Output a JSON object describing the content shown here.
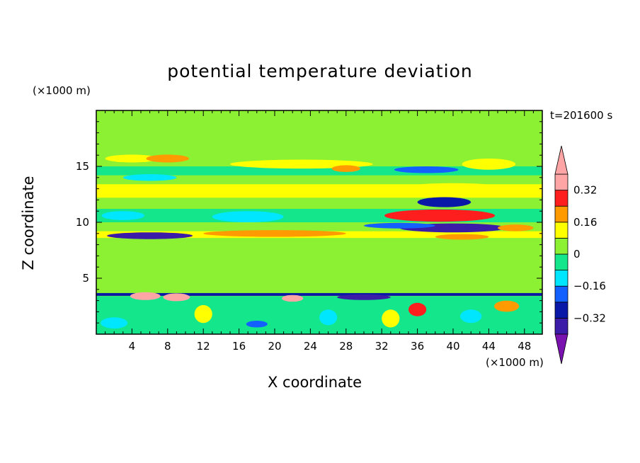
{
  "chart_data": {
    "type": "heatmap",
    "title": "potential temperature deviation",
    "xlabel": "X coordinate",
    "ylabel": "Z coordinate",
    "x_unit": "(×1000 m)",
    "y_unit": "(×1000 m)",
    "time_label": "t=201600 s",
    "xlim": [
      0,
      50
    ],
    "ylim": [
      0,
      20
    ],
    "x_ticks": [
      4,
      8,
      12,
      16,
      20,
      24,
      28,
      32,
      36,
      40,
      44,
      48
    ],
    "y_ticks": [
      5,
      10,
      15
    ],
    "colorbar": {
      "levels": [
        -0.4,
        -0.32,
        -0.24,
        -0.16,
        -0.08,
        0,
        0.08,
        0.16,
        0.24,
        0.32,
        0.4
      ],
      "labels": [
        "0.32",
        "0.16",
        "0",
        "−0.16",
        "−0.32"
      ],
      "label_values": [
        0.32,
        0.16,
        0,
        -0.16,
        -0.32
      ],
      "colors": [
        "#7a12b0",
        "#3b1ca8",
        "#0a18a8",
        "#1460ff",
        "#00e6ff",
        "#14e68c",
        "#8cf033",
        "#ffff00",
        "#ff9b00",
        "#ff1e1e",
        "#ffa5a5"
      ]
    },
    "bands": [
      {
        "z0": 0,
        "z1": 20,
        "v": 0.0
      },
      {
        "z0": 16.6,
        "z1": 17.6,
        "v": 0.04
      },
      {
        "z0": 14.2,
        "z1": 15.0,
        "v": -0.08
      },
      {
        "z0": 12.2,
        "z1": 13.4,
        "v": 0.1
      },
      {
        "z0": 11.2,
        "z1": 12.0,
        "v": 0.05
      },
      {
        "z0": 10.0,
        "z1": 11.2,
        "v": -0.08
      },
      {
        "z0": 9.2,
        "z1": 10.0,
        "v": 0.05
      },
      {
        "z0": 8.6,
        "z1": 9.2,
        "v": 0.12
      },
      {
        "z0": 3.8,
        "z1": 8.4,
        "v": 0.02
      },
      {
        "z0": 0,
        "z1": 3.4,
        "v": -0.02
      }
    ],
    "blobs": [
      {
        "x": 4,
        "z": 15.7,
        "rx": 3.0,
        "rz": 0.35,
        "v": 0.14
      },
      {
        "x": 8,
        "z": 15.7,
        "rx": 2.4,
        "rz": 0.35,
        "v": 0.22
      },
      {
        "x": 23,
        "z": 15.2,
        "rx": 8.0,
        "rz": 0.4,
        "v": 0.12
      },
      {
        "x": 28,
        "z": 14.8,
        "rx": 1.6,
        "rz": 0.3,
        "v": 0.22
      },
      {
        "x": 37,
        "z": 14.7,
        "rx": 3.6,
        "rz": 0.3,
        "v": -0.18
      },
      {
        "x": 44,
        "z": 15.2,
        "rx": 3.0,
        "rz": 0.5,
        "v": 0.12
      },
      {
        "x": 6,
        "z": 14.0,
        "rx": 3.0,
        "rz": 0.3,
        "v": -0.1
      },
      {
        "x": 40,
        "z": 13.0,
        "rx": 6.0,
        "rz": 0.5,
        "v": 0.14
      },
      {
        "x": 15,
        "z": 12.7,
        "rx": 10.0,
        "rz": 0.4,
        "v": 0.14
      },
      {
        "x": 3,
        "z": 10.6,
        "rx": 2.4,
        "rz": 0.4,
        "v": -0.12
      },
      {
        "x": 17,
        "z": 10.5,
        "rx": 4.0,
        "rz": 0.5,
        "v": -0.1
      },
      {
        "x": 39,
        "z": 11.8,
        "rx": 3.0,
        "rz": 0.45,
        "v": -0.3
      },
      {
        "x": 38.5,
        "z": 10.6,
        "rx": 6.2,
        "rz": 0.55,
        "v": 0.26
      },
      {
        "x": 40,
        "z": 9.5,
        "rx": 6.0,
        "rz": 0.4,
        "v": -0.34
      },
      {
        "x": 34,
        "z": 9.7,
        "rx": 4.0,
        "rz": 0.25,
        "v": -0.2
      },
      {
        "x": 47,
        "z": 9.5,
        "rx": 2.0,
        "rz": 0.3,
        "v": 0.18
      },
      {
        "x": 6,
        "z": 8.8,
        "rx": 4.8,
        "rz": 0.3,
        "v": -0.36
      },
      {
        "x": 20,
        "z": 9.0,
        "rx": 8.0,
        "rz": 0.3,
        "v": 0.16
      },
      {
        "x": 41,
        "z": 8.7,
        "rx": 3.0,
        "rz": 0.25,
        "v": 0.2
      },
      {
        "x": 5.5,
        "z": 3.4,
        "rx": 1.7,
        "rz": 0.35,
        "v": 0.42
      },
      {
        "x": 9,
        "z": 3.3,
        "rx": 1.5,
        "rz": 0.35,
        "v": 0.42
      },
      {
        "x": 22,
        "z": 3.2,
        "rx": 1.2,
        "rz": 0.3,
        "v": 0.34
      },
      {
        "x": 30,
        "z": 3.3,
        "rx": 3.0,
        "rz": 0.25,
        "v": -0.35
      },
      {
        "x": 36,
        "z": 2.2,
        "rx": 1.0,
        "rz": 0.6,
        "v": 0.26
      },
      {
        "x": 46,
        "z": 2.5,
        "rx": 1.4,
        "rz": 0.5,
        "v": 0.18
      },
      {
        "x": 2,
        "z": 1.0,
        "rx": 1.5,
        "rz": 0.5,
        "v": -0.1
      },
      {
        "x": 18,
        "z": 0.9,
        "rx": 1.2,
        "rz": 0.3,
        "v": -0.24
      },
      {
        "x": 12,
        "z": 1.8,
        "rx": 1.0,
        "rz": 0.8,
        "v": 0.14
      },
      {
        "x": 26,
        "z": 1.5,
        "rx": 1.0,
        "rz": 0.7,
        "v": -0.12
      },
      {
        "x": 33,
        "z": 1.4,
        "rx": 1.0,
        "rz": 0.8,
        "v": 0.14
      },
      {
        "x": 42,
        "z": 1.6,
        "rx": 1.2,
        "rz": 0.6,
        "v": -0.1
      }
    ],
    "strips": [
      {
        "x0": 0,
        "x1": 50,
        "z": 3.55,
        "h": 0.25,
        "v": -0.3
      }
    ]
  }
}
